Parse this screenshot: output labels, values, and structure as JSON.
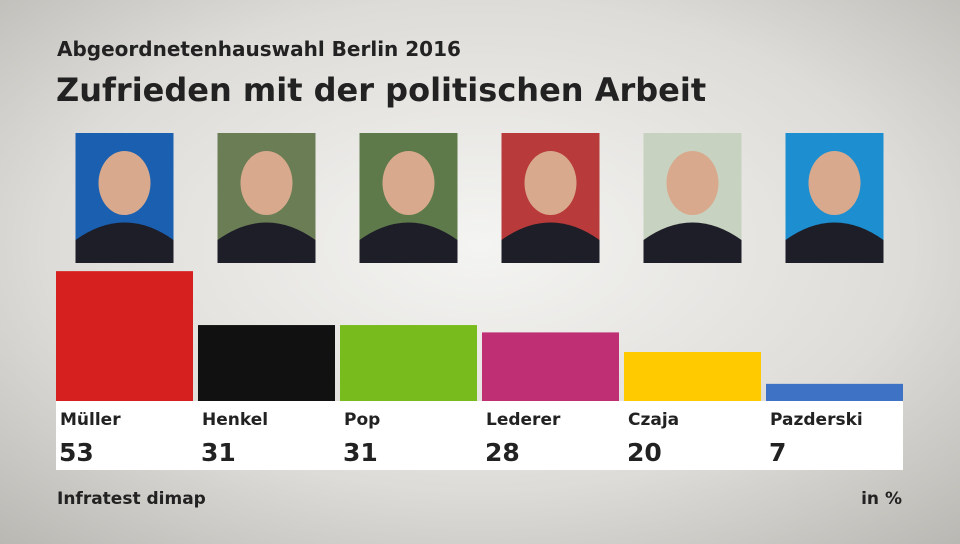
{
  "chart_data": {
    "type": "bar",
    "subtitle": "Abgeordnetenhauswahl Berlin 2016",
    "title": "Zufrieden mit der politischen Arbeit",
    "categories": [
      "Müller",
      "Henkel",
      "Pop",
      "Lederer",
      "Czaja",
      "Pazderski"
    ],
    "values": [
      53,
      31,
      31,
      28,
      20,
      7
    ],
    "colors": [
      "#d61f1f",
      "#111111",
      "#77bb1c",
      "#bf2f74",
      "#ffcb00",
      "#3d72c4"
    ],
    "source": "Infratest dimap",
    "unit": "in %"
  }
}
